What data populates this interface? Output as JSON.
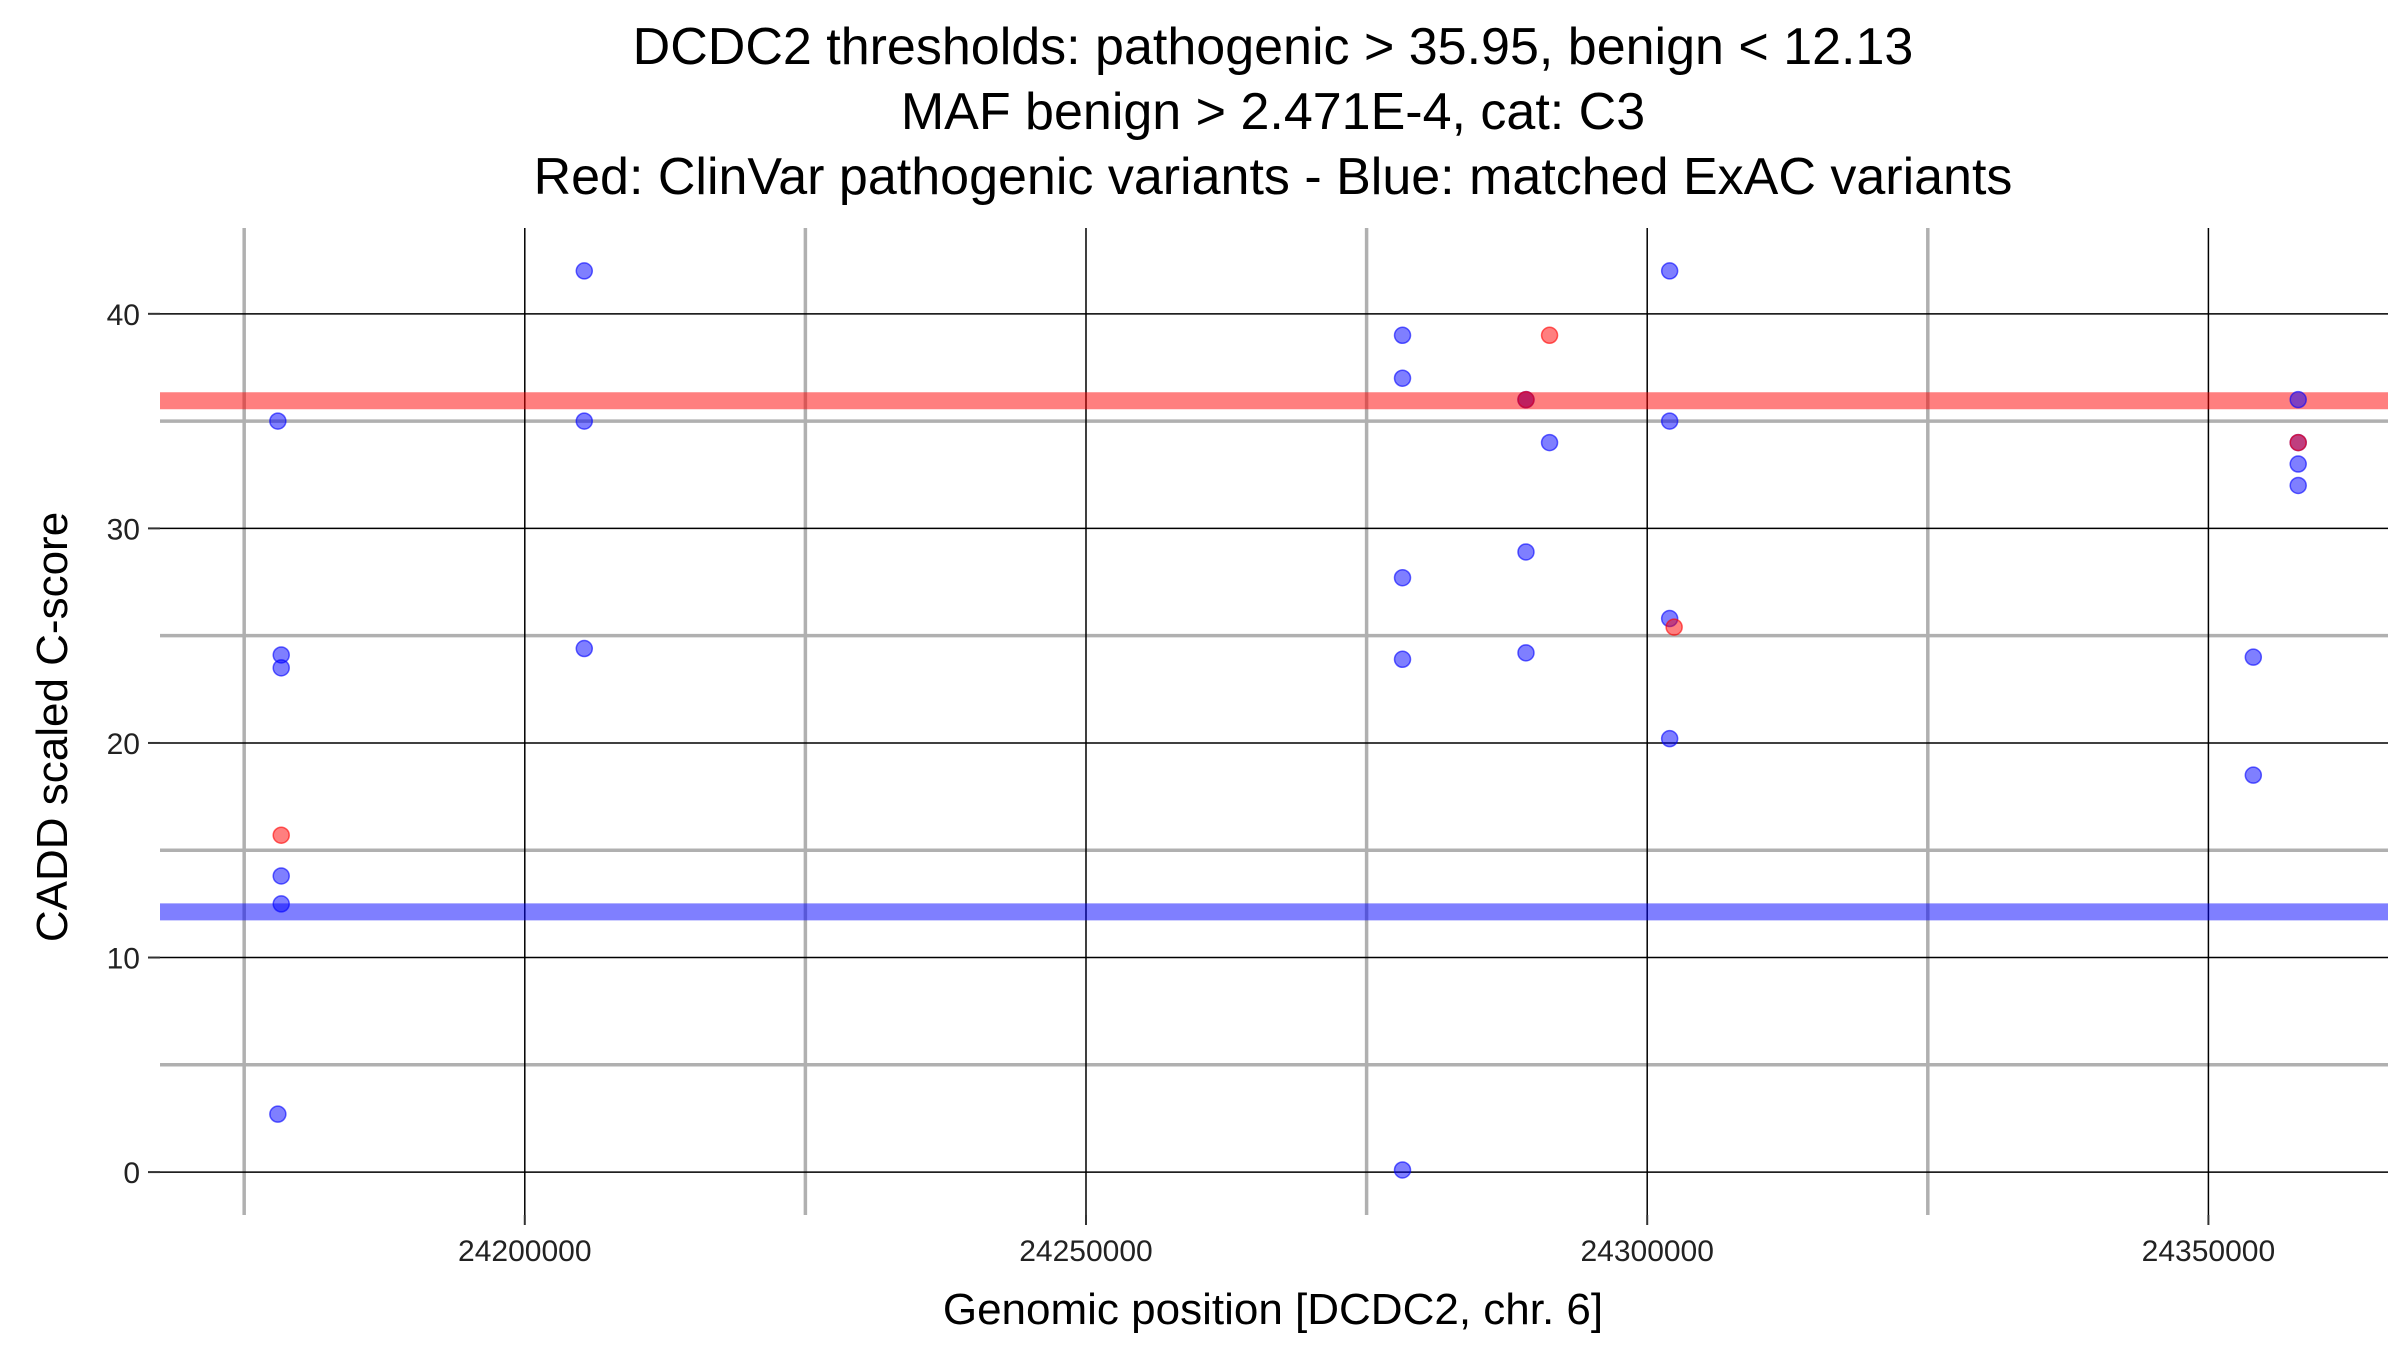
{
  "chart_data": {
    "type": "scatter",
    "title_lines": [
      "DCDC2 thresholds: pathogenic > 35.95, benign < 12.13",
      "MAF benign > 2.471E-4, cat: C3",
      "Red: ClinVar pathogenic variants - Blue: matched ExAC variants"
    ],
    "xlabel": "Genomic position [DCDC2, chr. 6]",
    "ylabel": "CADD scaled C-score",
    "xlim": [
      24167500,
      24366000
    ],
    "ylim": [
      -2,
      44
    ],
    "x_ticks": [
      24200000,
      24250000,
      24300000,
      24350000
    ],
    "x_minor": [
      24175000,
      24225000,
      24275000,
      24325000
    ],
    "y_ticks": [
      0,
      10,
      20,
      30,
      40
    ],
    "y_minor": [
      5,
      15,
      25,
      35
    ],
    "grid": true,
    "colors": {
      "pathogenic": "#ff0000",
      "benign": "#0000ff",
      "major_grid": "#000000",
      "minor_grid": "#b0b0b0"
    },
    "thresholds": [
      {
        "name": "pathogenic",
        "y": 35.95,
        "color": "#ff0000"
      },
      {
        "name": "benign",
        "y": 12.13,
        "color": "#0000ff"
      }
    ],
    "series": [
      {
        "color": "#0000ff",
        "points": [
          [
            24178000,
            35
          ],
          [
            24178300,
            24.1
          ],
          [
            24178300,
            23.5
          ],
          [
            24178300,
            13.8
          ],
          [
            24178300,
            12.5
          ],
          [
            24178000,
            2.7
          ],
          [
            24205300,
            42
          ],
          [
            24205300,
            35
          ],
          [
            24205300,
            24.4
          ],
          [
            24278200,
            39
          ],
          [
            24278200,
            37
          ],
          [
            24278200,
            27.7
          ],
          [
            24278200,
            23.9
          ],
          [
            24278200,
            0.1
          ],
          [
            24289200,
            36
          ],
          [
            24291300,
            34
          ],
          [
            24289200,
            28.9
          ],
          [
            24289200,
            24.2
          ],
          [
            24302000,
            42
          ],
          [
            24302000,
            35
          ],
          [
            24302000,
            25.8
          ],
          [
            24302000,
            20.2
          ],
          [
            24354000,
            24
          ],
          [
            24354000,
            18.5
          ],
          [
            24358000,
            36
          ],
          [
            24358000,
            34
          ],
          [
            24358000,
            33
          ],
          [
            24358000,
            32
          ]
        ]
      },
      {
        "color": "#ff0000",
        "points": [
          [
            24178300,
            15.7
          ],
          [
            24289200,
            36
          ],
          [
            24291300,
            39
          ],
          [
            24302400,
            25.4
          ],
          [
            24358000,
            34
          ]
        ]
      }
    ]
  }
}
